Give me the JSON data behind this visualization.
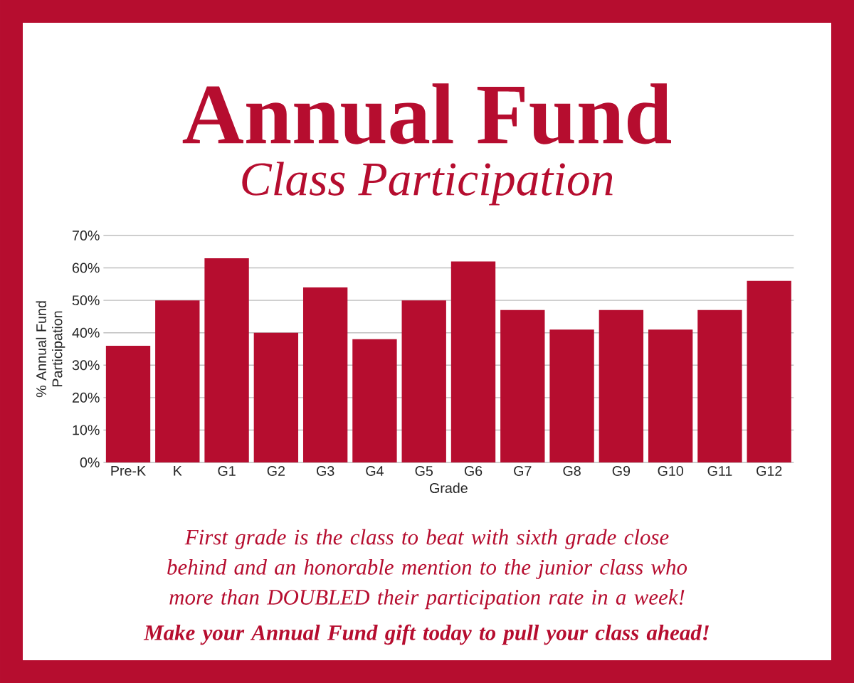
{
  "chart_data": {
    "type": "bar",
    "title": "Annual Fund",
    "subtitle": "Class Participation",
    "xlabel": "Grade",
    "ylabel": "% Annual Fund Participation",
    "categories": [
      "Pre-K",
      "K",
      "G1",
      "G2",
      "G3",
      "G4",
      "G5",
      "G6",
      "G7",
      "G8",
      "G9",
      "G10",
      "G11",
      "G12"
    ],
    "values": [
      36,
      50,
      63,
      40,
      54,
      38,
      50,
      62,
      47,
      41,
      47,
      41,
      47,
      56
    ],
    "color": "#b60d2f",
    "ylim": [
      0,
      70
    ],
    "yticks": [
      {
        "value": 0,
        "label": "0%"
      },
      {
        "value": 10,
        "label": "10%"
      },
      {
        "value": 20,
        "label": "20%"
      },
      {
        "value": 30,
        "label": "30%"
      },
      {
        "value": 40,
        "label": "40%"
      },
      {
        "value": 50,
        "label": "50%"
      },
      {
        "value": 60,
        "label": "60%"
      },
      {
        "value": 70,
        "label": "70%"
      }
    ],
    "grid": "y",
    "annotations": [
      "First grade is the class to beat with sixth grade close behind and an honorable mention to the junior class who more than DOUBLED their participation rate in a week!",
      "Make your Annual Fund gift today to pull your class ahead!"
    ]
  }
}
